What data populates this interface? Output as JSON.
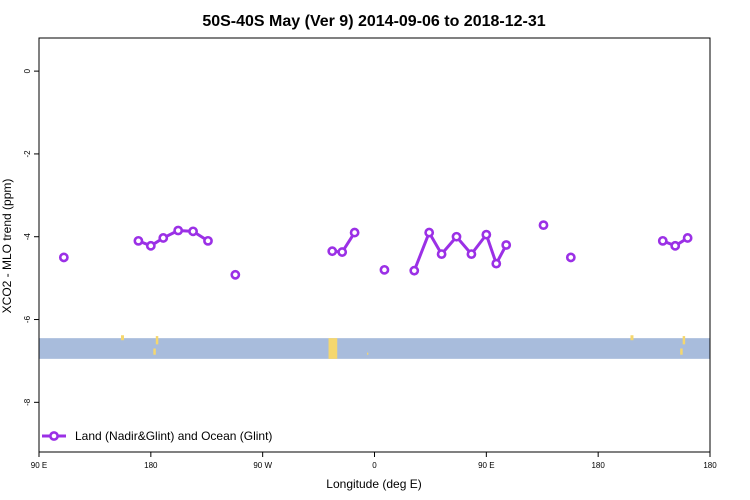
{
  "chart_data": {
    "type": "line",
    "title": "50S-40S May (Ver 9)   2014-09-06 to 2018-12-31",
    "xlabel": "Longitude (deg E)",
    "ylabel": "XCO2 - MLO trend (ppm)",
    "xlim": [
      -90,
      180
    ],
    "ylim": [
      -9.2,
      0.8
    ],
    "x_ticks": [
      {
        "value": -90,
        "label": "90 E"
      },
      {
        "value": -45,
        "label": "180"
      },
      {
        "value": 0,
        "label": "90 W"
      },
      {
        "value": 45,
        "label": "0"
      },
      {
        "value": 90,
        "label": "90 E"
      },
      {
        "value": 135,
        "label": "180"
      }
    ],
    "y_ticks": [
      {
        "value": 0,
        "label": "0"
      },
      {
        "value": -2,
        "label": "-2"
      },
      {
        "value": -4,
        "label": "-4"
      },
      {
        "value": -6,
        "label": "-6"
      },
      {
        "value": -8,
        "label": "-8"
      }
    ],
    "grid": false,
    "legend_position": "bottom-left",
    "map_strip": {
      "y_range": [
        -6.95,
        -6.45
      ],
      "ocean_color": "#a8bcdc",
      "land_color": "#f5d76e",
      "description": "longitude reference strip"
    },
    "series": [
      {
        "name": "Land (Nadir&Glint) and Ocean (Glint)",
        "color": "#9b30e6",
        "segments": [
          [
            {
              "x": -80,
              "y": -4.5
            }
          ],
          [
            {
              "x": -50,
              "y": -4.1
            },
            {
              "x": -45,
              "y": -4.22
            },
            {
              "x": -40,
              "y": -4.03
            },
            {
              "x": -34,
              "y": -3.85
            },
            {
              "x": -28,
              "y": -3.87
            },
            {
              "x": -22,
              "y": -4.1
            }
          ],
          [
            {
              "x": -11,
              "y": -4.92
            }
          ],
          [
            {
              "x": 28,
              "y": -4.35
            },
            {
              "x": 32,
              "y": -4.37
            },
            {
              "x": 37,
              "y": -3.9
            }
          ],
          [
            {
              "x": 49,
              "y": -4.8
            }
          ],
          [
            {
              "x": 61,
              "y": -4.82
            },
            {
              "x": 67,
              "y": -3.9
            },
            {
              "x": 72,
              "y": -4.42
            },
            {
              "x": 78,
              "y": -4.0
            },
            {
              "x": 84,
              "y": -4.42
            },
            {
              "x": 90,
              "y": -3.95
            },
            {
              "x": 94,
              "y": -4.65
            },
            {
              "x": 98,
              "y": -4.2
            }
          ],
          [
            {
              "x": 113,
              "y": -3.72
            }
          ],
          [
            {
              "x": 124,
              "y": -4.5
            }
          ],
          [
            {
              "x": 161,
              "y": -4.1
            },
            {
              "x": 166,
              "y": -4.22
            },
            {
              "x": 171,
              "y": -4.03
            }
          ]
        ]
      }
    ]
  }
}
